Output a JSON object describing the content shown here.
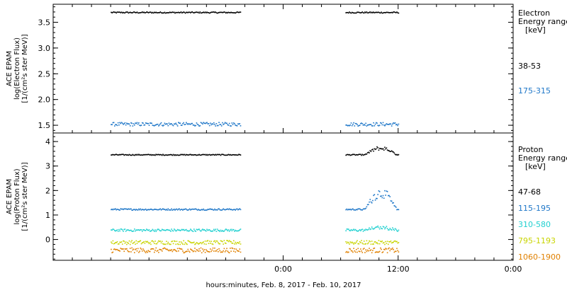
{
  "chart_data": [
    {
      "type": "scatter",
      "panel": "electron",
      "ylabel_lines": [
        "ACE EPAM",
        "log(Electron Flux)",
        "[1/(cm²s ster MeV)]"
      ],
      "ylim": [
        1.35,
        3.85
      ],
      "yticks": [
        1.5,
        2.0,
        2.5,
        3.0,
        3.5
      ],
      "ytick_labels": [
        "1.5",
        "2.0",
        "2.5",
        "3.0",
        "3.5"
      ],
      "legend_title_lines": [
        "Electron",
        "Energy range",
        "[keV]"
      ],
      "series": [
        {
          "name": "38-53",
          "color": "#000000",
          "mean": 3.7,
          "jitter": 0.012
        },
        {
          "name": "175-315",
          "color": "#1f77c8",
          "mean": 1.53,
          "jitter": 0.035
        }
      ]
    },
    {
      "type": "scatter",
      "panel": "proton",
      "ylabel_lines": [
        "ACE EPAM",
        "log(Proton Flux)",
        "[1/(cm²s ster MeV)]"
      ],
      "ylim": [
        -0.85,
        4.35
      ],
      "yticks": [
        0,
        1,
        2,
        3,
        4
      ],
      "ytick_labels": [
        "0",
        "1",
        "2",
        "3",
        "4"
      ],
      "legend_title_lines": [
        "Proton",
        "Energy range",
        "[keV]"
      ],
      "series": [
        {
          "name": "47-68",
          "color": "#000000",
          "mean": 3.48,
          "jitter": 0.02,
          "bump": 0.35
        },
        {
          "name": "115-195",
          "color": "#1f77c8",
          "mean": 1.25,
          "jitter": 0.03,
          "bump": 0.9
        },
        {
          "name": "310-580",
          "color": "#20d0d0",
          "mean": 0.4,
          "jitter": 0.05,
          "bump": 0.15
        },
        {
          "name": "795-1193",
          "color": "#c8d400",
          "mean": -0.1,
          "jitter": 0.08
        },
        {
          "name": "1060-1900",
          "color": "#e08000",
          "mean": -0.42,
          "jitter": 0.1
        }
      ]
    }
  ],
  "x_axis": {
    "tick_labels": [
      "0:00",
      "12:00",
      "0:00"
    ],
    "xlabel": "hours:minutes, Feb.  8, 2017 - Feb. 10, 2017",
    "data_segments_hours": [
      [
        -18,
        -4.5
      ],
      [
        6.5,
        12
      ]
    ],
    "xlim_hours": [
      -24,
      24
    ]
  }
}
